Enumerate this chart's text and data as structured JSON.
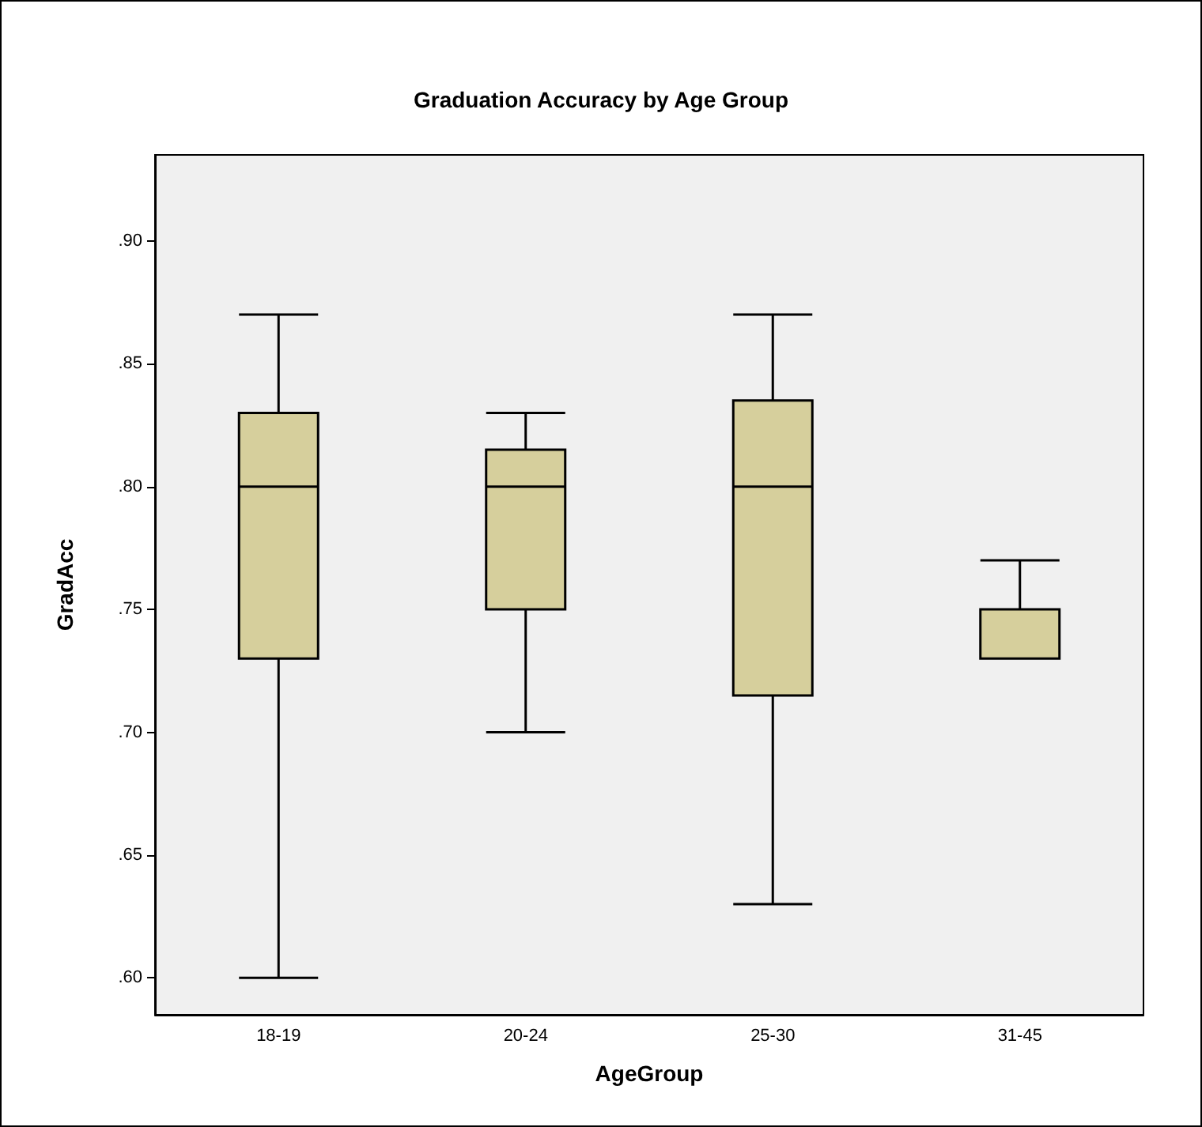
{
  "chart_data": {
    "type": "box",
    "title": "Graduation Accuracy by Age Group",
    "xlabel": "AgeGroup",
    "ylabel": "GradAcc",
    "categories": [
      "18-19",
      "20-24",
      "25-30",
      "31-45"
    ],
    "boxes": [
      {
        "low": 0.6,
        "q1": 0.73,
        "median": 0.8,
        "q3": 0.83,
        "high": 0.87
      },
      {
        "low": 0.7,
        "q1": 0.75,
        "median": 0.8,
        "q3": 0.815,
        "high": 0.83
      },
      {
        "low": 0.63,
        "q1": 0.715,
        "median": 0.8,
        "q3": 0.835,
        "high": 0.87
      },
      {
        "low": 0.73,
        "q1": 0.73,
        "median": 0.73,
        "q3": 0.75,
        "high": 0.77
      }
    ],
    "color": "#d6cf9c",
    "ylim": [
      0.585,
      0.935
    ],
    "yticks": [
      {
        "value": 0.6,
        "label": ".60"
      },
      {
        "value": 0.65,
        "label": ".65"
      },
      {
        "value": 0.7,
        "label": ".70"
      },
      {
        "value": 0.75,
        "label": ".75"
      },
      {
        "value": 0.8,
        "label": ".80"
      },
      {
        "value": 0.85,
        "label": ".85"
      },
      {
        "value": 0.9,
        "label": ".90"
      }
    ]
  }
}
